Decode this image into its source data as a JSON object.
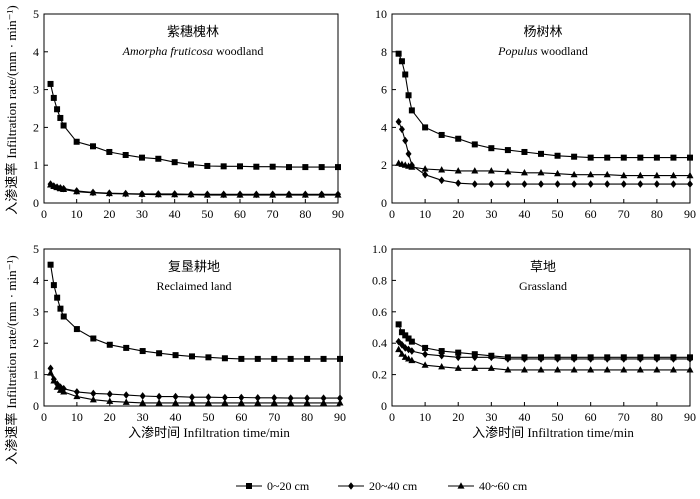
{
  "chart_data": [
    {
      "type": "line",
      "title": "紫穗槐林",
      "subtitle_italic": "Amorpha fruticosa",
      "subtitle_rest": " woodland",
      "xlim": [
        0,
        90
      ],
      "ylim": [
        0,
        5
      ],
      "xticks": [
        0,
        10,
        20,
        30,
        40,
        50,
        60,
        70,
        80,
        90
      ],
      "yticks": [
        0,
        1,
        2,
        3,
        4,
        5
      ],
      "series": [
        {
          "name": "0~20 cm",
          "x": [
            2,
            3,
            4,
            5,
            6,
            10,
            15,
            20,
            25,
            30,
            35,
            40,
            45,
            50,
            55,
            60,
            65,
            70,
            75,
            80,
            85,
            90
          ],
          "y": [
            3.15,
            2.78,
            2.48,
            2.25,
            2.05,
            1.62,
            1.5,
            1.35,
            1.27,
            1.2,
            1.17,
            1.08,
            1.02,
            0.98,
            0.97,
            0.97,
            0.96,
            0.96,
            0.95,
            0.95,
            0.95,
            0.95
          ]
        },
        {
          "name": "20~40 cm",
          "x": [
            2,
            3,
            4,
            5,
            6,
            10,
            15,
            20,
            25,
            30,
            35,
            40,
            45,
            50,
            55,
            60,
            65,
            70,
            75,
            80,
            85,
            90
          ],
          "y": [
            0.5,
            0.45,
            0.42,
            0.4,
            0.38,
            0.32,
            0.28,
            0.26,
            0.25,
            0.24,
            0.24,
            0.24,
            0.23,
            0.23,
            0.23,
            0.23,
            0.23,
            0.23,
            0.23,
            0.23,
            0.23,
            0.23
          ]
        },
        {
          "name": "40~60 cm",
          "x": [
            2,
            3,
            4,
            5,
            6,
            10,
            15,
            20,
            25,
            30,
            35,
            40,
            45,
            50,
            55,
            60,
            65,
            70,
            75,
            80,
            85,
            90
          ],
          "y": [
            0.48,
            0.44,
            0.41,
            0.38,
            0.36,
            0.3,
            0.27,
            0.25,
            0.24,
            0.23,
            0.22,
            0.22,
            0.22,
            0.21,
            0.21,
            0.21,
            0.21,
            0.21,
            0.21,
            0.21,
            0.21,
            0.21
          ]
        }
      ]
    },
    {
      "type": "line",
      "title": "杨树林",
      "subtitle_italic": "Populus",
      "subtitle_rest": " woodland",
      "xlim": [
        0,
        90
      ],
      "ylim": [
        0,
        10
      ],
      "xticks": [
        0,
        10,
        20,
        30,
        40,
        50,
        60,
        70,
        80,
        90
      ],
      "yticks": [
        0,
        2,
        4,
        6,
        8,
        10
      ],
      "series": [
        {
          "name": "0~20 cm",
          "x": [
            2,
            3,
            4,
            5,
            6,
            10,
            15,
            20,
            25,
            30,
            35,
            40,
            45,
            50,
            55,
            60,
            65,
            70,
            75,
            80,
            85,
            90
          ],
          "y": [
            7.9,
            7.5,
            6.8,
            5.7,
            4.9,
            4.0,
            3.6,
            3.4,
            3.1,
            2.9,
            2.8,
            2.7,
            2.6,
            2.5,
            2.45,
            2.4,
            2.4,
            2.4,
            2.4,
            2.4,
            2.4,
            2.4
          ]
        },
        {
          "name": "20~40 cm",
          "x": [
            2,
            3,
            4,
            5,
            6,
            10,
            15,
            20,
            25,
            30,
            35,
            40,
            45,
            50,
            55,
            60,
            65,
            70,
            75,
            80,
            85,
            90
          ],
          "y": [
            4.3,
            3.9,
            3.3,
            2.6,
            2.0,
            1.5,
            1.2,
            1.05,
            1.0,
            1.0,
            1.0,
            1.0,
            1.0,
            1.0,
            1.0,
            1.0,
            1.0,
            1.0,
            1.0,
            1.0,
            1.0,
            1.0
          ]
        },
        {
          "name": "40~60 cm",
          "x": [
            2,
            3,
            4,
            5,
            6,
            10,
            15,
            20,
            25,
            30,
            35,
            40,
            45,
            50,
            55,
            60,
            65,
            70,
            75,
            80,
            85,
            90
          ],
          "y": [
            2.1,
            2.05,
            2.0,
            1.95,
            1.9,
            1.8,
            1.75,
            1.7,
            1.7,
            1.7,
            1.65,
            1.6,
            1.6,
            1.55,
            1.5,
            1.5,
            1.5,
            1.45,
            1.45,
            1.45,
            1.45,
            1.45
          ]
        }
      ]
    },
    {
      "type": "line",
      "title": "复垦耕地",
      "subtitle_italic": "",
      "subtitle_rest": "Reclaimed land",
      "xlim": [
        0,
        90
      ],
      "ylim": [
        0,
        5
      ],
      "xticks": [
        0,
        10,
        20,
        30,
        40,
        50,
        60,
        70,
        80,
        90
      ],
      "yticks": [
        0,
        1,
        2,
        3,
        4,
        5
      ],
      "series": [
        {
          "name": "0~20 cm",
          "x": [
            2,
            3,
            4,
            5,
            6,
            10,
            15,
            20,
            25,
            30,
            35,
            40,
            45,
            50,
            55,
            60,
            65,
            70,
            75,
            80,
            85,
            90
          ],
          "y": [
            4.5,
            3.85,
            3.45,
            3.1,
            2.85,
            2.45,
            2.15,
            1.95,
            1.85,
            1.75,
            1.68,
            1.62,
            1.58,
            1.55,
            1.52,
            1.5,
            1.5,
            1.5,
            1.5,
            1.5,
            1.5,
            1.5
          ]
        },
        {
          "name": "20~40 cm",
          "x": [
            2,
            3,
            4,
            5,
            6,
            10,
            15,
            20,
            25,
            30,
            35,
            40,
            45,
            50,
            55,
            60,
            65,
            70,
            75,
            80,
            85,
            90
          ],
          "y": [
            1.2,
            0.85,
            0.7,
            0.6,
            0.55,
            0.45,
            0.4,
            0.38,
            0.35,
            0.32,
            0.3,
            0.3,
            0.28,
            0.28,
            0.27,
            0.27,
            0.26,
            0.26,
            0.25,
            0.25,
            0.25,
            0.25
          ]
        },
        {
          "name": "40~60 cm",
          "x": [
            2,
            3,
            4,
            5,
            6,
            10,
            15,
            20,
            25,
            30,
            35,
            40,
            45,
            50,
            55,
            60,
            65,
            70,
            75,
            80,
            85,
            90
          ],
          "y": [
            1.05,
            0.8,
            0.6,
            0.5,
            0.45,
            0.3,
            0.2,
            0.15,
            0.12,
            0.1,
            0.1,
            0.1,
            0.1,
            0.1,
            0.1,
            0.1,
            0.1,
            0.1,
            0.1,
            0.1,
            0.1,
            0.1
          ]
        }
      ]
    },
    {
      "type": "line",
      "title": "草地",
      "subtitle_italic": "",
      "subtitle_rest": "Grassland",
      "xlim": [
        0,
        90
      ],
      "ylim": [
        0,
        1.0
      ],
      "xticks": [
        0,
        10,
        20,
        30,
        40,
        50,
        60,
        70,
        80,
        90
      ],
      "yticks": [
        0,
        0.2,
        0.4,
        0.6,
        0.8,
        1.0
      ],
      "ytick_labels": [
        "0",
        "0.2",
        "0.4",
        "0.6",
        "0.8",
        "1.0"
      ],
      "series": [
        {
          "name": "0~20 cm",
          "x": [
            2,
            3,
            4,
            5,
            6,
            10,
            15,
            20,
            25,
            30,
            35,
            40,
            45,
            50,
            55,
            60,
            65,
            70,
            75,
            80,
            85,
            90
          ],
          "y": [
            0.52,
            0.47,
            0.45,
            0.43,
            0.41,
            0.37,
            0.35,
            0.34,
            0.33,
            0.32,
            0.31,
            0.31,
            0.31,
            0.31,
            0.31,
            0.31,
            0.31,
            0.31,
            0.31,
            0.31,
            0.31,
            0.31
          ]
        },
        {
          "name": "20~40 cm",
          "x": [
            2,
            3,
            4,
            5,
            6,
            10,
            15,
            20,
            25,
            30,
            35,
            40,
            45,
            50,
            55,
            60,
            65,
            70,
            75,
            80,
            85,
            90
          ],
          "y": [
            0.41,
            0.39,
            0.37,
            0.36,
            0.35,
            0.33,
            0.32,
            0.31,
            0.31,
            0.31,
            0.3,
            0.3,
            0.3,
            0.3,
            0.3,
            0.3,
            0.3,
            0.3,
            0.3,
            0.3,
            0.3,
            0.3
          ]
        },
        {
          "name": "40~60 cm",
          "x": [
            2,
            3,
            4,
            5,
            6,
            10,
            15,
            20,
            25,
            30,
            35,
            40,
            45,
            50,
            55,
            60,
            65,
            70,
            75,
            80,
            85,
            90
          ],
          "y": [
            0.36,
            0.33,
            0.31,
            0.3,
            0.29,
            0.26,
            0.25,
            0.24,
            0.24,
            0.24,
            0.23,
            0.23,
            0.23,
            0.23,
            0.23,
            0.23,
            0.23,
            0.23,
            0.23,
            0.23,
            0.23,
            0.23
          ]
        }
      ]
    }
  ],
  "axis_labels": {
    "ylabel_cn": "入渗速率",
    "ylabel_en": "Infiltration rate/(mm · min⁻¹)",
    "xlabel": "入渗时间 Infiltration time/min"
  },
  "legend": {
    "entries": [
      {
        "label": "0~20 cm",
        "marker": "square"
      },
      {
        "label": "20~40 cm",
        "marker": "diamond"
      },
      {
        "label": "40~60 cm",
        "marker": "triangle"
      }
    ]
  }
}
